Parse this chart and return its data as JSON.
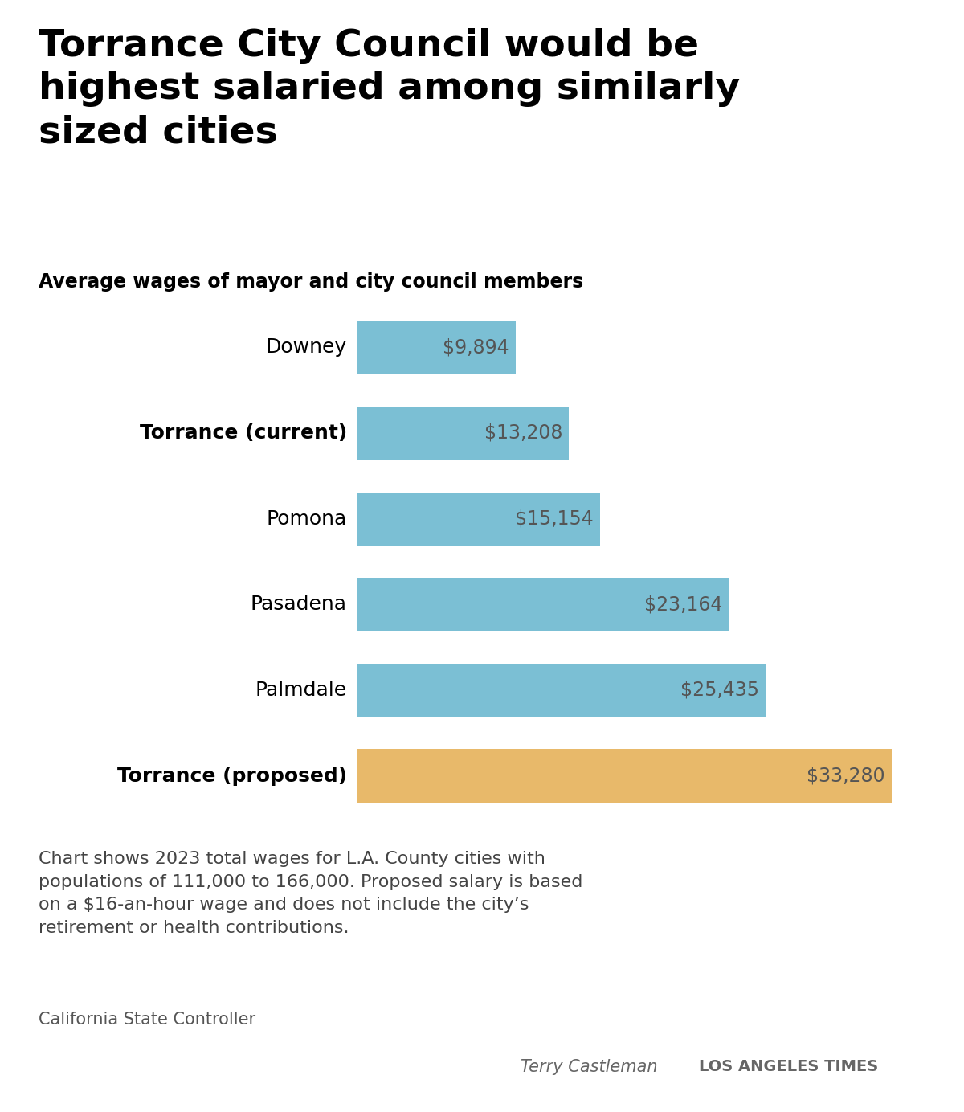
{
  "title": "Torrance City Council would be\nhighest salaried among similarly\nsized cities",
  "subtitle": "Average wages of mayor and city council members",
  "categories": [
    "Downey",
    "Torrance (current)",
    "Pomona",
    "Pasadena",
    "Palmdale",
    "Torrance (proposed)"
  ],
  "values": [
    9894,
    13208,
    15154,
    23164,
    25435,
    33280
  ],
  "labels": [
    "$9,894",
    "$13,208",
    "$15,154",
    "$23,164",
    "$25,435",
    "$33,280"
  ],
  "bold_labels": [
    false,
    true,
    false,
    false,
    false,
    true
  ],
  "bar_colors": [
    "#7bbfd4",
    "#7bbfd4",
    "#7bbfd4",
    "#7bbfd4",
    "#7bbfd4",
    "#e8b96a"
  ],
  "label_color": "#555555",
  "background_color": "#ffffff",
  "xlim": [
    0,
    36000
  ],
  "note_text": "Chart shows 2023 total wages for L.A. County cities with\npopulations of 111,000 to 166,000. Proposed salary is based\non a $16-an-hour wage and does not include the city’s\nretirement or health contributions.",
  "source_text": "California State Controller",
  "credit_name": "Terry Castleman",
  "credit_org": "LOS ANGELES TIMES",
  "title_fontsize": 34,
  "subtitle_fontsize": 17,
  "category_fontsize": 18,
  "value_fontsize": 17,
  "note_fontsize": 16,
  "source_fontsize": 15,
  "credit_fontsize": 15
}
